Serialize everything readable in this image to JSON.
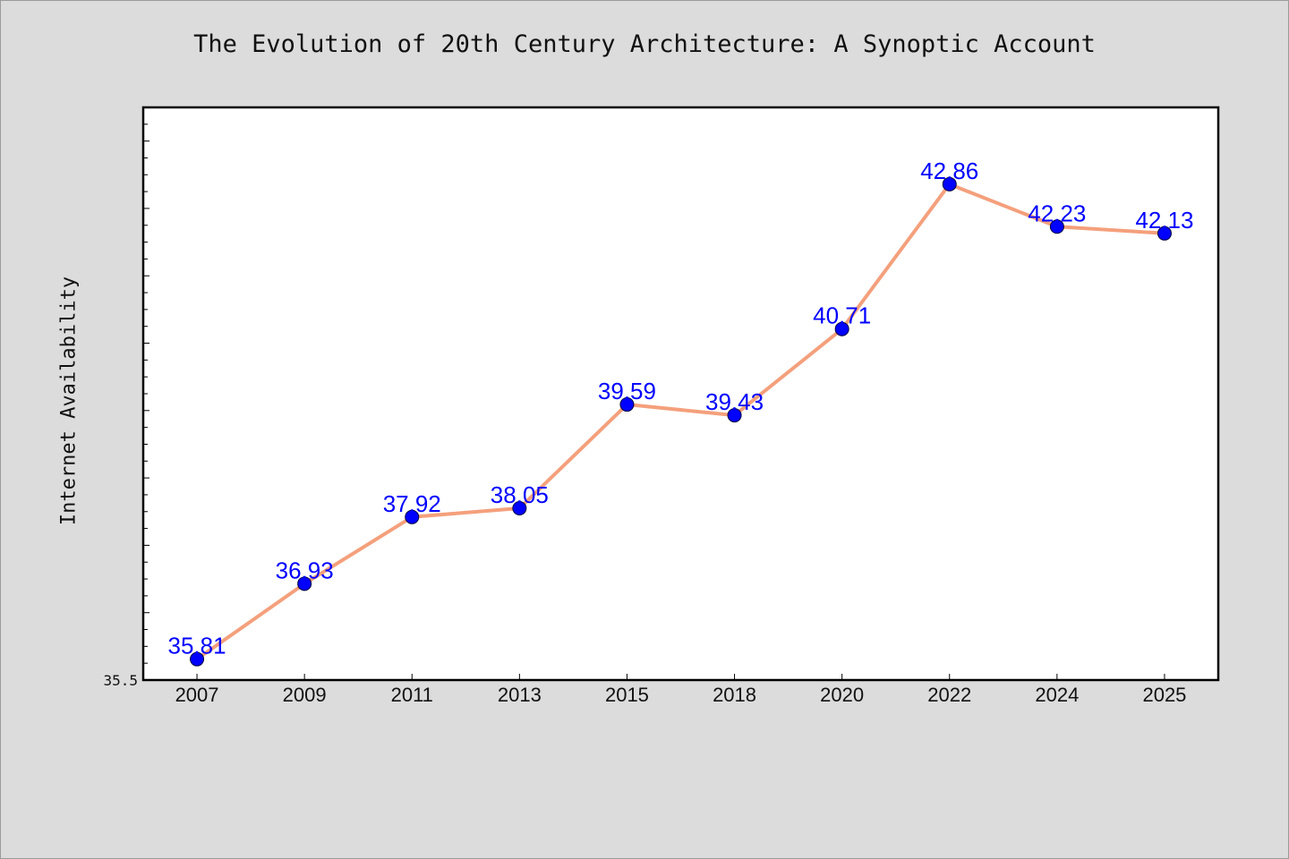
{
  "chart_data": {
    "type": "line",
    "title": "The Evolution of 20th Century Architecture: A Synoptic Account",
    "xlabel": "",
    "ylabel": "Internet Availability",
    "categories": [
      "2007",
      "2009",
      "2011",
      "2013",
      "2015",
      "2018",
      "2020",
      "2022",
      "2024",
      "2025"
    ],
    "series": [
      {
        "values": [
          35.81,
          36.93,
          37.92,
          38.05,
          39.59,
          39.43,
          40.71,
          42.86,
          42.23,
          42.13
        ],
        "labels": [
          "35.81",
          "36.93",
          "37.92",
          "38.05",
          "39.59",
          "39.43",
          "40.71",
          "42.86",
          "42.23",
          "42.13"
        ]
      }
    ],
    "ylim": [
      35.5,
      44
    ],
    "y_tick_label": "35.5",
    "grid": false,
    "colors": {
      "line": "#f4a07c",
      "marker": "#0000ff",
      "label": "#0000ff",
      "plot_bg": "#ffffff",
      "page_bg": "#dcdcdc"
    }
  }
}
